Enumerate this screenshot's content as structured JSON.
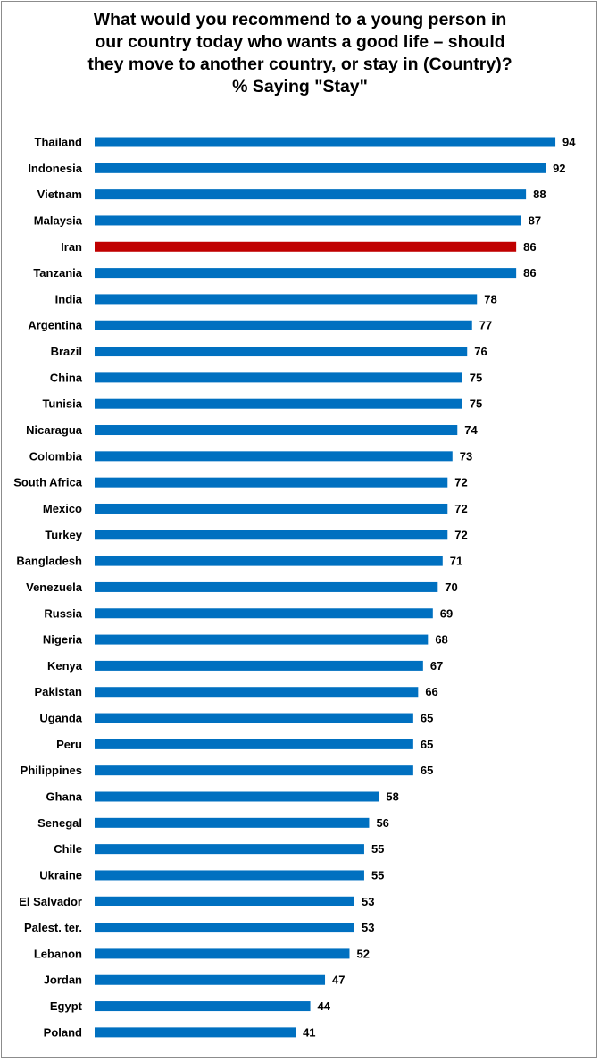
{
  "chart_data": {
    "type": "bar",
    "orientation": "horizontal",
    "title_lines": [
      "What would you recommend to a young person in",
      "our country today who wants a good life – should",
      "they move to another country, or stay in (Country)?",
      "% Saying \"Stay\""
    ],
    "categories": [
      "Thailand",
      "Indonesia",
      "Vietnam",
      "Malaysia",
      "Iran",
      "Tanzania",
      "India",
      "Argentina",
      "Brazil",
      "China",
      "Tunisia",
      "Nicaragua",
      "Colombia",
      "South Africa",
      "Mexico",
      "Turkey",
      "Bangladesh",
      "Venezuela",
      "Russia",
      "Nigeria",
      "Kenya",
      "Pakistan",
      "Uganda",
      "Peru",
      "Philippines",
      "Ghana",
      "Senegal",
      "Chile",
      "Ukraine",
      "El Salvador",
      "Palest. ter.",
      "Lebanon",
      "Jordan",
      "Egypt",
      "Poland"
    ],
    "values": [
      94,
      92,
      88,
      87,
      86,
      86,
      78,
      77,
      76,
      75,
      75,
      74,
      73,
      72,
      72,
      72,
      71,
      70,
      69,
      68,
      67,
      66,
      65,
      65,
      65,
      58,
      56,
      55,
      55,
      53,
      53,
      52,
      47,
      44,
      41
    ],
    "highlight_category": "Iran",
    "bar_color": "#0070C0",
    "highlight_color": "#C00000",
    "xlim": [
      0,
      100
    ],
    "grid": false,
    "legend": "none"
  }
}
